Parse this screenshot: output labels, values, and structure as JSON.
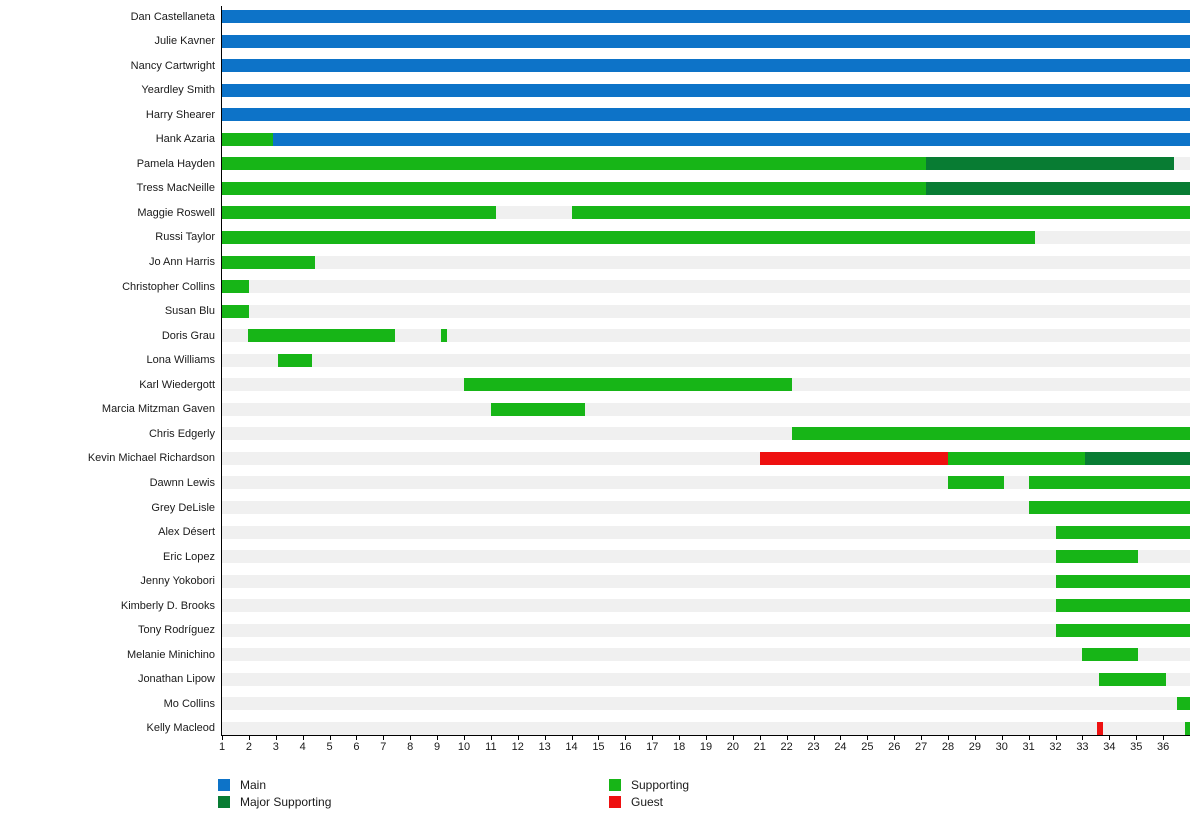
{
  "chart_data": {
    "type": "bar",
    "variant": "horizontal-timeline-gantt",
    "title": "",
    "xlabel": "",
    "ylabel": "",
    "grid": false,
    "legend_position": "bottom",
    "x_axis": {
      "min": 1,
      "max": 37,
      "ticks": [
        1,
        2,
        3,
        4,
        5,
        6,
        7,
        8,
        9,
        10,
        11,
        12,
        13,
        14,
        15,
        16,
        17,
        18,
        19,
        20,
        21,
        22,
        23,
        24,
        25,
        26,
        27,
        28,
        29,
        30,
        31,
        32,
        33,
        34,
        35,
        36
      ]
    },
    "categories": [
      "Dan Castellaneta",
      "Julie Kavner",
      "Nancy Cartwright",
      "Yeardley Smith",
      "Harry Shearer",
      "Hank Azaria",
      "Pamela Hayden",
      "Tress MacNeille",
      "Maggie Roswell",
      "Russi Taylor",
      "Jo Ann Harris",
      "Christopher Collins",
      "Susan Blu",
      "Doris Grau",
      "Lona Williams",
      "Karl Wiedergott",
      "Marcia Mitzman Gaven",
      "Chris Edgerly",
      "Kevin Michael Richardson",
      "Dawnn Lewis",
      "Grey DeLisle",
      "Alex Désert",
      "Eric Lopez",
      "Jenny Yokobori",
      "Kimberly D. Brooks",
      "Tony Rodríguez",
      "Melanie Minichino",
      "Jonathan Lipow",
      "Mo Collins",
      "Kelly Macleod"
    ],
    "rows": [
      {
        "name": "Dan Castellaneta",
        "segments": [
          {
            "role": "main",
            "start": 1,
            "end": 37
          }
        ]
      },
      {
        "name": "Julie Kavner",
        "segments": [
          {
            "role": "main",
            "start": 1,
            "end": 37
          }
        ]
      },
      {
        "name": "Nancy Cartwright",
        "segments": [
          {
            "role": "main",
            "start": 1,
            "end": 37
          }
        ]
      },
      {
        "name": "Yeardley Smith",
        "segments": [
          {
            "role": "main",
            "start": 1,
            "end": 37
          }
        ]
      },
      {
        "name": "Harry Shearer",
        "segments": [
          {
            "role": "main",
            "start": 1,
            "end": 37
          }
        ]
      },
      {
        "name": "Hank Azaria",
        "segments": [
          {
            "role": "supporting",
            "start": 1,
            "end": 2.9
          },
          {
            "role": "main",
            "start": 2.9,
            "end": 37
          }
        ]
      },
      {
        "name": "Pamela Hayden",
        "segments": [
          {
            "role": "supporting",
            "start": 1,
            "end": 27.2
          },
          {
            "role": "major_supporting",
            "start": 27.2,
            "end": 36.4
          }
        ]
      },
      {
        "name": "Tress MacNeille",
        "segments": [
          {
            "role": "supporting",
            "start": 1,
            "end": 27.2
          },
          {
            "role": "major_supporting",
            "start": 27.2,
            "end": 37
          }
        ]
      },
      {
        "name": "Maggie Roswell",
        "segments": [
          {
            "role": "supporting",
            "start": 1,
            "end": 11.2
          },
          {
            "role": "supporting",
            "start": 14,
            "end": 37
          }
        ]
      },
      {
        "name": "Russi Taylor",
        "segments": [
          {
            "role": "supporting",
            "start": 1,
            "end": 31.25
          }
        ]
      },
      {
        "name": "Jo Ann Harris",
        "segments": [
          {
            "role": "supporting",
            "start": 1,
            "end": 4.45
          }
        ]
      },
      {
        "name": "Christopher Collins",
        "segments": [
          {
            "role": "supporting",
            "start": 1,
            "end": 2
          }
        ]
      },
      {
        "name": "Susan Blu",
        "segments": [
          {
            "role": "supporting",
            "start": 1,
            "end": 2
          }
        ]
      },
      {
        "name": "Doris Grau",
        "segments": [
          {
            "role": "supporting",
            "start": 1.95,
            "end": 7.45
          },
          {
            "role": "supporting",
            "start": 9.15,
            "end": 9.35
          }
        ]
      },
      {
        "name": "Lona Williams",
        "segments": [
          {
            "role": "supporting",
            "start": 3.1,
            "end": 4.35
          }
        ]
      },
      {
        "name": "Karl Wiedergott",
        "segments": [
          {
            "role": "supporting",
            "start": 10,
            "end": 22.2
          }
        ]
      },
      {
        "name": "Marcia Mitzman Gaven",
        "segments": [
          {
            "role": "supporting",
            "start": 11,
            "end": 14.5
          }
        ]
      },
      {
        "name": "Chris Edgerly",
        "segments": [
          {
            "role": "supporting",
            "start": 22.2,
            "end": 37
          }
        ]
      },
      {
        "name": "Kevin Michael Richardson",
        "segments": [
          {
            "role": "guest",
            "start": 21,
            "end": 28
          },
          {
            "role": "supporting",
            "start": 28,
            "end": 33.1
          },
          {
            "role": "major_supporting",
            "start": 33.1,
            "end": 37
          }
        ]
      },
      {
        "name": "Dawnn Lewis",
        "segments": [
          {
            "role": "supporting",
            "start": 28,
            "end": 30.1
          },
          {
            "role": "supporting",
            "start": 31,
            "end": 37
          }
        ]
      },
      {
        "name": "Grey DeLisle",
        "segments": [
          {
            "role": "supporting",
            "start": 31,
            "end": 37
          }
        ]
      },
      {
        "name": "Alex Désert",
        "segments": [
          {
            "role": "supporting",
            "start": 32,
            "end": 37
          }
        ]
      },
      {
        "name": "Eric Lopez",
        "segments": [
          {
            "role": "supporting",
            "start": 32,
            "end": 35.05
          }
        ]
      },
      {
        "name": "Jenny Yokobori",
        "segments": [
          {
            "role": "supporting",
            "start": 32,
            "end": 37
          }
        ]
      },
      {
        "name": "Kimberly D. Brooks",
        "segments": [
          {
            "role": "supporting",
            "start": 32,
            "end": 37
          }
        ]
      },
      {
        "name": "Tony Rodríguez",
        "segments": [
          {
            "role": "supporting",
            "start": 32,
            "end": 37
          }
        ]
      },
      {
        "name": "Melanie Minichino",
        "segments": [
          {
            "role": "supporting",
            "start": 33,
            "end": 35.05
          }
        ]
      },
      {
        "name": "Jonathan Lipow",
        "segments": [
          {
            "role": "supporting",
            "start": 33.6,
            "end": 36.1
          }
        ]
      },
      {
        "name": "Mo Collins",
        "segments": [
          {
            "role": "supporting",
            "start": 36.5,
            "end": 37
          }
        ]
      },
      {
        "name": "Kelly Macleod",
        "segments": [
          {
            "role": "guest",
            "start": 33.55,
            "end": 33.75
          },
          {
            "role": "supporting",
            "start": 36.8,
            "end": 37
          }
        ]
      }
    ],
    "legend": [
      {
        "label": "Main",
        "role": "main"
      },
      {
        "label": "Major Supporting",
        "role": "major_supporting"
      },
      {
        "label": "Supporting",
        "role": "supporting"
      },
      {
        "label": "Guest",
        "role": "guest"
      }
    ],
    "colors": {
      "main": "#0d73c8",
      "supporting": "#17b517",
      "major_supporting": "#087c33",
      "guest": "#ee1010",
      "track": "#f0f0f0",
      "axis": "#000000",
      "text": "#1a1a1a"
    }
  }
}
